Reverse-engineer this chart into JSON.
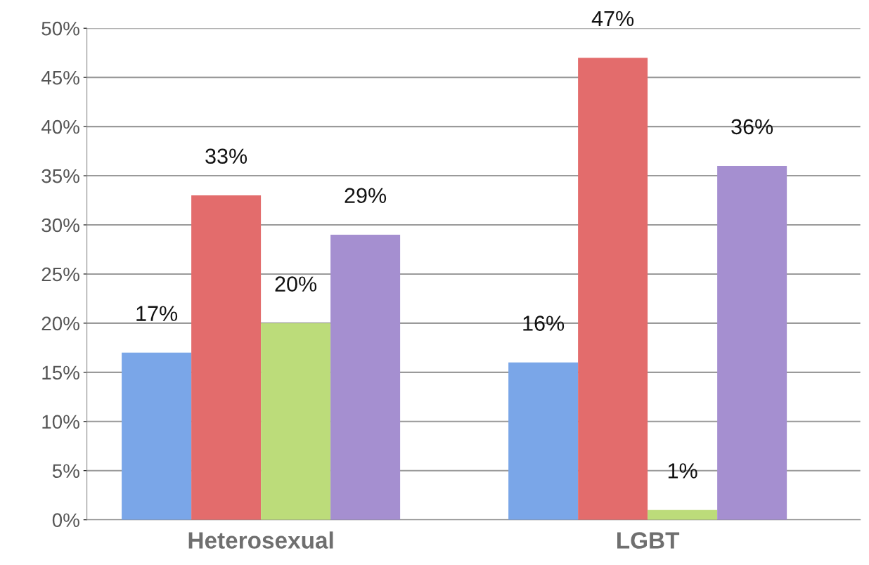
{
  "chart_data": {
    "type": "bar",
    "categories": [
      "Heterosexual",
      "LGBT"
    ],
    "series": [
      {
        "color": "#7aa6e8",
        "values": [
          17,
          16
        ],
        "value_labels": [
          "17%",
          "16%"
        ]
      },
      {
        "color": "#e36c6c",
        "values": [
          33,
          47
        ],
        "value_labels": [
          "33%",
          "47%"
        ]
      },
      {
        "color": "#bcdc7a",
        "values": [
          20,
          1
        ],
        "value_labels": [
          "20%",
          "1%"
        ]
      },
      {
        "color": "#a58fd0",
        "values": [
          29,
          36
        ],
        "value_labels": [
          "29%",
          "36%"
        ]
      }
    ],
    "ylim": [
      0,
      50
    ],
    "yticks": [
      {
        "value": 0,
        "label": "0%"
      },
      {
        "value": 5,
        "label": "5%"
      },
      {
        "value": 10,
        "label": "10%"
      },
      {
        "value": 15,
        "label": "15%"
      },
      {
        "value": 20,
        "label": "20%"
      },
      {
        "value": 25,
        "label": "25%"
      },
      {
        "value": 30,
        "label": "30%"
      },
      {
        "value": 35,
        "label": "35%"
      },
      {
        "value": 40,
        "label": "40%"
      },
      {
        "value": 45,
        "label": "45%"
      },
      {
        "value": 50,
        "label": "50%"
      }
    ],
    "grid": "y"
  }
}
